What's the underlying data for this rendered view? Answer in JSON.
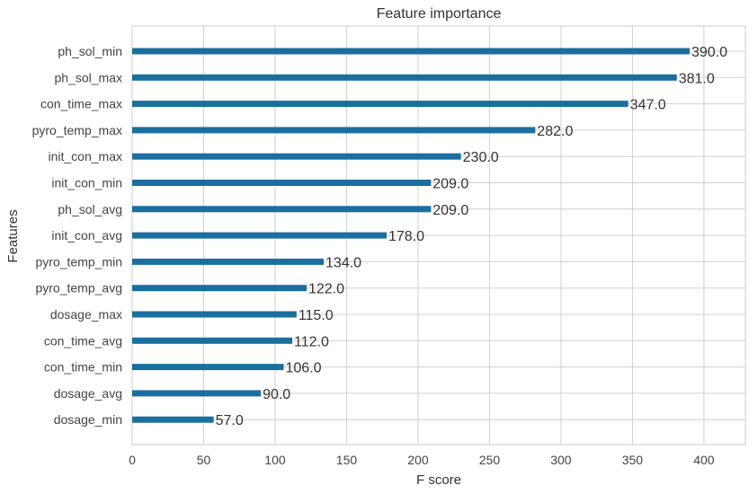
{
  "chart_data": {
    "type": "bar",
    "orientation": "horizontal",
    "title": "Feature importance",
    "xlabel": "F score",
    "ylabel": "Features",
    "categories": [
      "dosage_min",
      "dosage_avg",
      "con_time_min",
      "con_time_avg",
      "dosage_max",
      "pyro_temp_avg",
      "pyro_temp_min",
      "init_con_avg",
      "ph_sol_avg",
      "init_con_min",
      "init_con_max",
      "pyro_temp_max",
      "con_time_max",
      "ph_sol_max",
      "ph_sol_min"
    ],
    "values": [
      57.0,
      90.0,
      106.0,
      112.0,
      115.0,
      122.0,
      134.0,
      178.0,
      209.0,
      209.0,
      230.0,
      282.0,
      347.0,
      381.0,
      390.0
    ],
    "value_labels": [
      "57.0",
      "90.0",
      "106.0",
      "112.0",
      "115.0",
      "122.0",
      "134.0",
      "178.0",
      "209.0",
      "209.0",
      "230.0",
      "282.0",
      "347.0",
      "381.0",
      "390.0"
    ],
    "xticks": [
      "0",
      "50",
      "100",
      "150",
      "200",
      "250",
      "300",
      "350",
      "400"
    ],
    "xlim": [
      0,
      429
    ],
    "grid": true,
    "bar_color": "#1a6f9f",
    "grid_color": "#d0d0d0"
  }
}
